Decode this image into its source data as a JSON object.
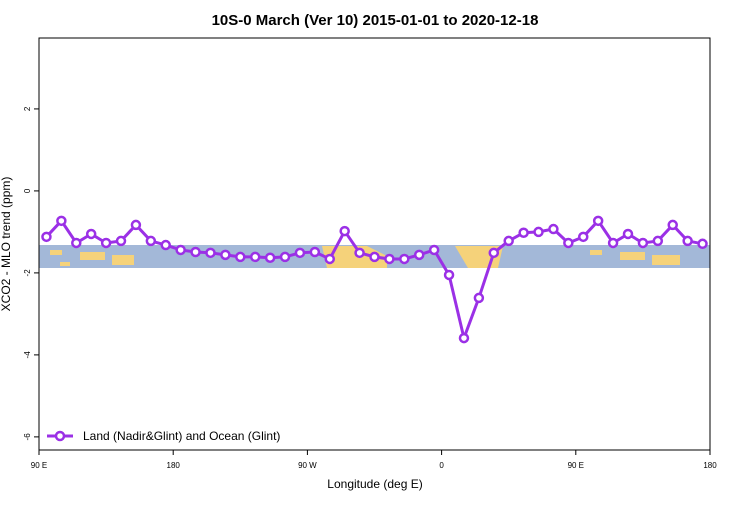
{
  "chart_data": {
    "type": "line",
    "title": "10S-0 March (Ver 10)   2015-01-01 to 2020-12-18",
    "x_label": "Longitude (deg E)",
    "y_label": "XCO2 - MLO trend (ppm)",
    "xlim": [
      90,
      540
    ],
    "ylim": [
      -6.32,
      3.73
    ],
    "xticks": [
      {
        "value": 90,
        "label": "90 E"
      },
      {
        "value": 180,
        "label": "180"
      },
      {
        "value": 270,
        "label": "90 W"
      },
      {
        "value": 360,
        "label": "0"
      },
      {
        "value": 450,
        "label": "90 E"
      },
      {
        "value": 540,
        "label": "180"
      }
    ],
    "yticks": [
      2,
      0,
      -2,
      -4,
      -6
    ],
    "legend_position": "bottom-left",
    "series": [
      {
        "name": "Land (Nadir&Glint) and Ocean (Glint)",
        "color": "#9b30e6",
        "x": [
          95,
          105,
          115,
          125,
          135,
          145,
          155,
          165,
          175,
          185,
          195,
          205,
          215,
          225,
          235,
          245,
          255,
          265,
          275,
          285,
          295,
          305,
          315,
          325,
          335,
          345,
          355,
          365,
          375,
          385,
          395,
          405,
          415,
          425,
          435,
          445,
          455,
          465,
          475,
          485,
          495,
          505,
          515,
          525,
          535
        ],
        "values": [
          -1.12,
          -0.73,
          -1.27,
          -1.05,
          -1.27,
          -1.22,
          -0.83,
          -1.22,
          -1.32,
          -1.44,
          -1.49,
          -1.51,
          -1.56,
          -1.61,
          -1.61,
          -1.63,
          -1.61,
          -1.51,
          -1.49,
          -1.66,
          -0.98,
          -1.51,
          -1.61,
          -1.66,
          -1.66,
          -1.56,
          -1.44,
          -2.05,
          -3.59,
          -2.61,
          -1.51,
          -1.22,
          -1.02,
          -1.0,
          -0.93,
          -1.27,
          -1.12,
          -0.73,
          -1.27,
          -1.05,
          -1.27,
          -1.22,
          -0.83,
          -1.22,
          -1.29
        ]
      }
    ]
  }
}
